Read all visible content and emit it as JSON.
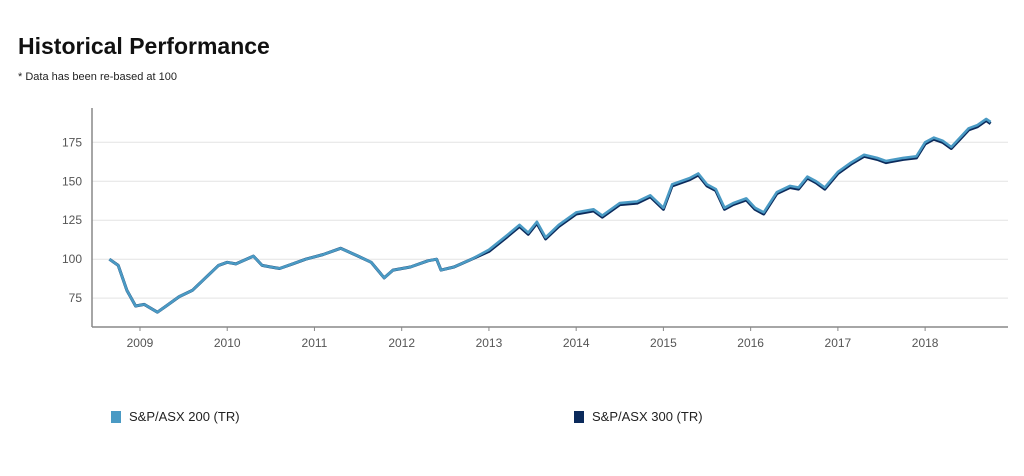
{
  "header": {
    "title": "Historical Performance",
    "subtitle": "* Data has been re-based at 100"
  },
  "chart_data": {
    "type": "line",
    "title": "Historical Performance",
    "xlabel": "",
    "ylabel": "",
    "xlim": [
      2008.45,
      2018.95
    ],
    "ylim": [
      56.5,
      197
    ],
    "yticks": [
      "75",
      "100",
      "125",
      "150",
      "175"
    ],
    "xticks": [
      "2009",
      "2010",
      "2011",
      "2012",
      "2013",
      "2014",
      "2015",
      "2016",
      "2017",
      "2018"
    ],
    "grid": "horizontal",
    "legend_position": "bottom",
    "x": [
      2008.65,
      2008.75,
      2008.85,
      2008.95,
      2009.05,
      2009.2,
      2009.3,
      2009.45,
      2009.6,
      2009.75,
      2009.9,
      2010.0,
      2010.1,
      2010.3,
      2010.4,
      2010.5,
      2010.6,
      2010.75,
      2010.9,
      2011.1,
      2011.3,
      2011.5,
      2011.65,
      2011.8,
      2011.9,
      2012.1,
      2012.3,
      2012.4,
      2012.45,
      2012.6,
      2012.8,
      2013.0,
      2013.2,
      2013.35,
      2013.45,
      2013.55,
      2013.65,
      2013.8,
      2014.0,
      2014.2,
      2014.3,
      2014.5,
      2014.7,
      2014.85,
      2015.0,
      2015.1,
      2015.3,
      2015.4,
      2015.5,
      2015.6,
      2015.7,
      2015.8,
      2015.95,
      2016.05,
      2016.15,
      2016.3,
      2016.45,
      2016.55,
      2016.65,
      2016.75,
      2016.85,
      2017.0,
      2017.15,
      2017.3,
      2017.45,
      2017.55,
      2017.75,
      2017.9,
      2018.0,
      2018.1,
      2018.2,
      2018.3,
      2018.4,
      2018.5,
      2018.6,
      2018.7,
      2018.75
    ],
    "series": [
      {
        "name": "S&P/ASX 300 (TR)",
        "color": "#0b2a5b",
        "values": [
          100,
          96,
          80,
          70,
          71,
          66,
          70,
          76,
          80,
          88,
          96,
          98,
          97,
          102,
          96,
          95,
          94,
          97,
          100,
          103,
          107,
          102,
          98,
          88,
          93,
          95,
          99,
          100,
          93,
          95,
          100,
          105,
          114,
          121,
          116,
          123,
          113,
          121,
          129,
          131,
          127,
          135,
          136,
          140,
          132,
          147,
          151,
          154,
          147,
          144,
          132,
          135,
          138,
          132,
          129,
          142,
          146,
          145,
          152,
          149,
          145,
          155,
          161,
          166,
          164,
          162,
          164,
          165,
          174,
          177,
          175,
          171,
          177,
          183,
          185,
          189,
          187
        ]
      },
      {
        "name": "S&P/ASX 200 (TR)",
        "color": "#4a9ac4",
        "values": [
          100,
          96,
          80,
          70,
          71,
          66,
          70,
          76,
          80,
          88,
          96,
          98,
          97,
          102,
          96,
          95,
          94,
          97,
          100,
          103,
          107,
          102,
          98,
          88,
          93,
          95,
          99,
          100,
          93,
          95,
          100,
          106,
          115,
          122,
          117,
          124,
          114,
          122,
          130,
          132,
          128,
          136,
          137,
          141,
          133,
          148,
          152,
          155,
          148,
          145,
          133,
          136,
          139,
          133,
          130,
          143,
          147,
          146,
          153,
          150,
          146,
          156,
          162,
          167,
          165,
          163,
          165,
          166,
          175,
          178,
          176,
          172,
          178,
          184,
          186,
          190,
          188
        ]
      }
    ]
  }
}
